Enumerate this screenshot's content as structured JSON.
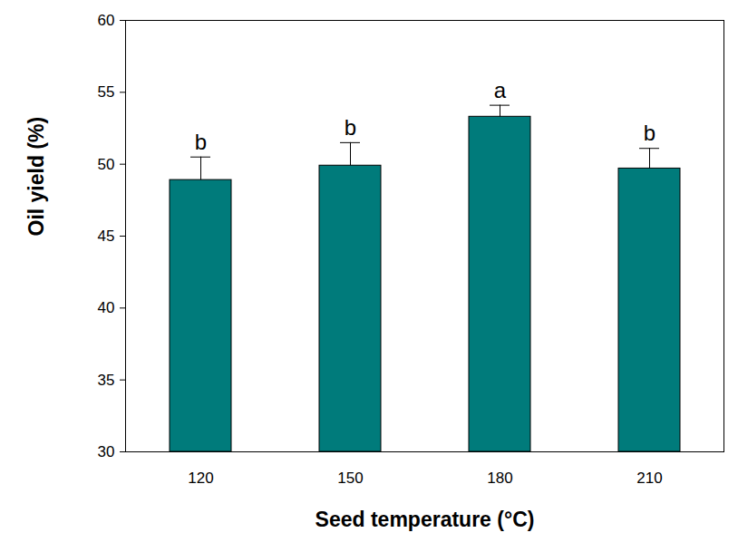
{
  "chart_data": {
    "type": "bar",
    "x_label": "Seed temperature (°C)",
    "y_label": "Oil yield (%)",
    "categories": [
      "120",
      "150",
      "180",
      "210"
    ],
    "values": [
      48.9,
      49.9,
      53.3,
      49.7
    ],
    "errors": [
      1.6,
      1.6,
      0.8,
      1.4
    ],
    "annotations": [
      "b",
      "b",
      "a",
      "b"
    ],
    "color": "#007b7b",
    "ylim": [
      30,
      60
    ],
    "yticks": [
      30,
      35,
      40,
      45,
      50,
      55,
      60
    ],
    "grid": false
  }
}
